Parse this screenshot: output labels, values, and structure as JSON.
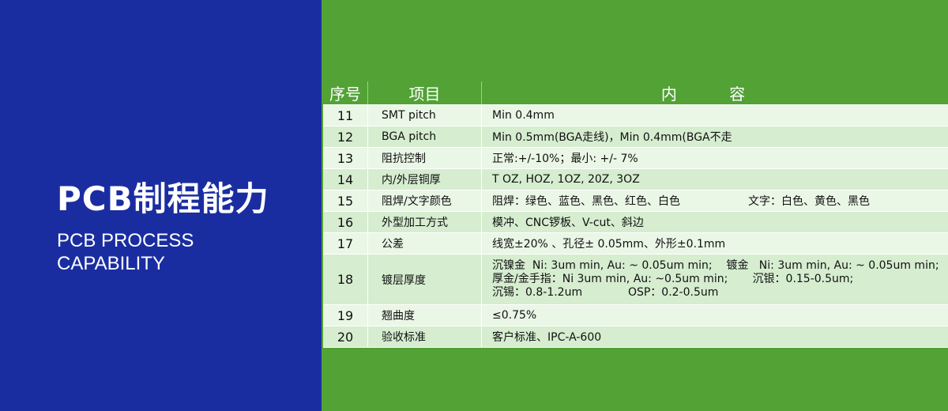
{
  "left": {
    "title_cn": "PCB制程能力",
    "title_en_1": "PCB PROCESS",
    "title_en_2": "CAPABILITY"
  },
  "colors": {
    "blue_panel": "#1a2da0",
    "green_bg": "#52a236",
    "row_dark": "#d6edd0",
    "row_light": "#eaf6e6"
  },
  "table": {
    "headers": [
      "序号",
      "项目",
      "内 容"
    ],
    "rows": [
      {
        "no": "11",
        "item": "SMT pitch",
        "content": "Min 0.4mm"
      },
      {
        "no": "12",
        "item": "BGA pitch",
        "content": "Min 0.5mm(BGA走线)，Min 0.4mm(BGA不走"
      },
      {
        "no": "13",
        "item": "阻抗控制",
        "content": "正常:+/-10%；最小: +/- 7%"
      },
      {
        "no": "14",
        "item": "内/外层铜厚",
        "content": "T OZ, HOZ, 1OZ, 20Z, 3OZ"
      },
      {
        "no": "15",
        "item": "阻焊/文字颜色",
        "content": "阻焊：绿色、蓝色、黑色、红色、白色",
        "content2": "文字：白色、黄色、黑色"
      },
      {
        "no": "16",
        "item": "外型加工方式",
        "content": "模冲、CNC锣板、V-cut、斜边"
      },
      {
        "no": "17",
        "item": "公差",
        "content": "线宽±20% 、孔径± 0.05mm、外形±0.1mm"
      },
      {
        "no": "18",
        "item": "镀层厚度",
        "lines": [
          "沉镍金  Ni: 3um min, Au: ~ 0.05um min;    镀金   Ni: 3um min, Au: ~ 0.05um min;",
          "厚金/金手指：Ni 3um min, Au: ~0.5um min;       沉银：0.15-0.5um;",
          "沉锡：0.8-1.2um             OSP：0.2-0.5um"
        ]
      },
      {
        "no": "19",
        "item": "翘曲度",
        "content": "≤0.75%"
      },
      {
        "no": "20",
        "item": "验收标准",
        "content": "客户标准、IPC-A-600"
      }
    ]
  }
}
